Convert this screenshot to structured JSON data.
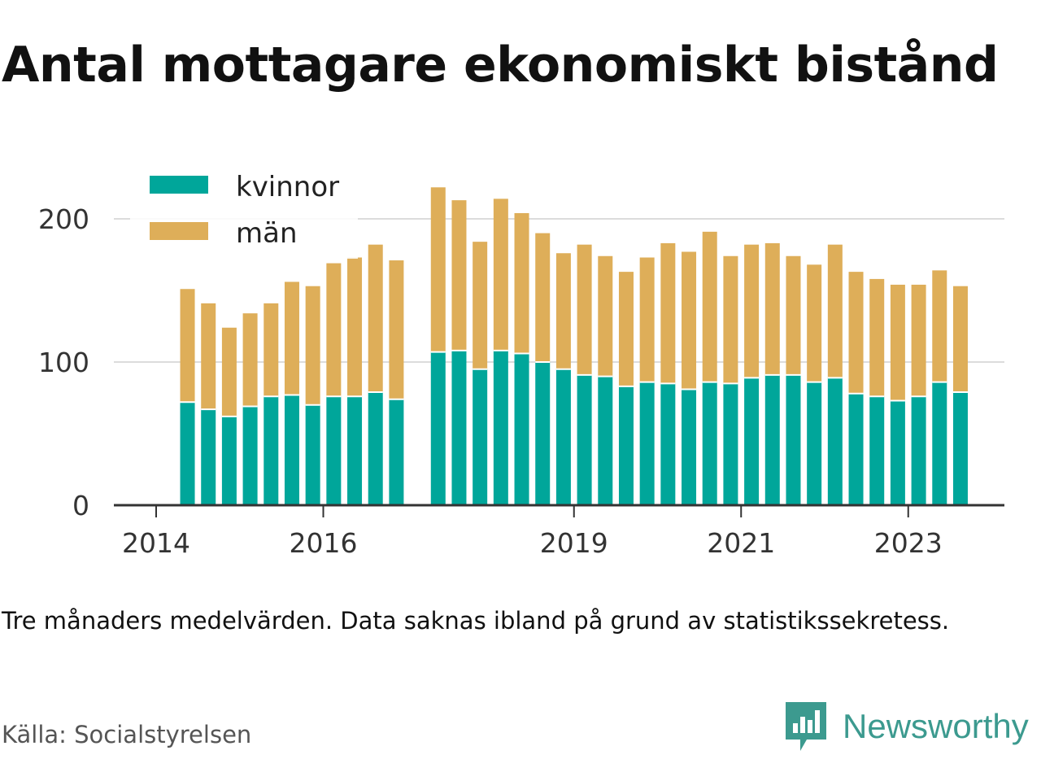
{
  "title": "Antal mottagare ekonomiskt bistånd",
  "note": "Tre månaders medelvärden. Data saknas ibland på grund av statistikssekretess.",
  "source": "Källa: Socialstyrelsen",
  "brand": {
    "name": "Newsworthy",
    "icon": "bar-chart-speech-bubble-icon",
    "color": "#3c9a8f"
  },
  "chart_data": {
    "type": "bar",
    "stacked": true,
    "ylim": [
      0,
      230
    ],
    "yticks": [
      0,
      100,
      200
    ],
    "grid": true,
    "legend_position": "top-left",
    "x_ticks": [
      {
        "label": "2014",
        "x": 2014.0
      },
      {
        "label": "2016",
        "x": 2016.0
      },
      {
        "label": "2019",
        "x": 2019.0
      },
      {
        "label": "2021",
        "x": 2021.0
      },
      {
        "label": "2023",
        "x": 2023.0
      }
    ],
    "x": [
      2014.375,
      2014.625,
      2014.875,
      2015.125,
      2015.375,
      2015.625,
      2015.875,
      2016.125,
      2016.375,
      2016.625,
      2016.875,
      2017.375,
      2017.625,
      2017.875,
      2018.125,
      2018.375,
      2018.625,
      2018.875,
      2019.125,
      2019.375,
      2019.625,
      2019.875,
      2020.125,
      2020.375,
      2020.625,
      2020.875,
      2021.125,
      2021.375,
      2021.625,
      2021.875,
      2022.125,
      2022.375,
      2022.625,
      2022.875,
      2023.125,
      2023.375,
      2023.625
    ],
    "series": [
      {
        "name": "kvinnor",
        "color": "#00a69a",
        "values": [
          72,
          67,
          62,
          69,
          76,
          77,
          70,
          76,
          76,
          79,
          74,
          107,
          108,
          95,
          108,
          106,
          100,
          95,
          91,
          90,
          83,
          86,
          85,
          81,
          86,
          85,
          89,
          91,
          91,
          86,
          89,
          78,
          76,
          73,
          76,
          86,
          79
        ]
      },
      {
        "name": "män",
        "color": "#deae59",
        "values": [
          79,
          74,
          62,
          65,
          65,
          79,
          83,
          93,
          97,
          103,
          97,
          115,
          105,
          89,
          106,
          98,
          90,
          81,
          91,
          84,
          80,
          87,
          98,
          96,
          105,
          89,
          93,
          92,
          83,
          82,
          93,
          85,
          82,
          81,
          78,
          78,
          74
        ]
      }
    ]
  }
}
